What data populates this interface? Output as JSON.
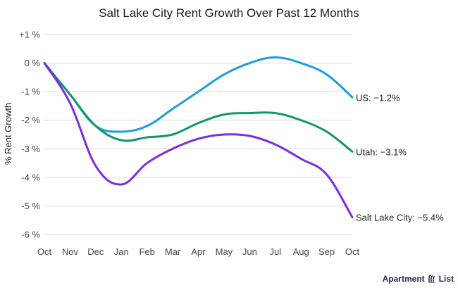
{
  "chart_data": {
    "type": "line",
    "title": "Salt Lake City Rent Growth Over Past 12 Months",
    "xlabel": "",
    "ylabel": "% Rent Growth",
    "categories": [
      "Oct",
      "Nov",
      "Dec",
      "Jan",
      "Feb",
      "Mar",
      "Apr",
      "May",
      "Jun",
      "Jul",
      "Aug",
      "Sep",
      "Oct"
    ],
    "ylim": [
      -6,
      1
    ],
    "yticks": [
      1,
      0,
      -1,
      -2,
      -3,
      -4,
      -5,
      -6
    ],
    "ytick_labels": [
      "+1 %",
      "0 %",
      "-1 %",
      "-2 %",
      "-3 %",
      "-4 %",
      "-5 %",
      "-6 %"
    ],
    "grid": true,
    "legend": "end-of-line labels (right)",
    "series": [
      {
        "name": "US",
        "color": "#1a9fdb",
        "end_label": "US: −1.2%",
        "values": [
          0,
          -1.1,
          -2.2,
          -2.4,
          -2.2,
          -1.6,
          -1.0,
          -0.4,
          0.0,
          0.2,
          0.0,
          -0.4,
          -1.2
        ]
      },
      {
        "name": "Utah",
        "color": "#12966e",
        "end_label": "Utah: −3.1%",
        "values": [
          0,
          -1.1,
          -2.2,
          -2.7,
          -2.6,
          -2.5,
          -2.1,
          -1.8,
          -1.75,
          -1.75,
          -2.0,
          -2.4,
          -3.1
        ]
      },
      {
        "name": "Salt Lake City",
        "color": "#7b2be0",
        "end_label": "Salt Lake City: −5.4%",
        "values": [
          0,
          -1.4,
          -3.6,
          -4.25,
          -3.5,
          -3.0,
          -2.65,
          -2.5,
          -2.55,
          -2.85,
          -3.35,
          -3.9,
          -5.4
        ]
      }
    ]
  },
  "branding": {
    "logo_text_1": "Apartment",
    "logo_text_2": "List",
    "logo_icon": "apartment-list-logo-icon",
    "logo_color": "#2b2140",
    "logo_accent": "#8a4de8"
  }
}
